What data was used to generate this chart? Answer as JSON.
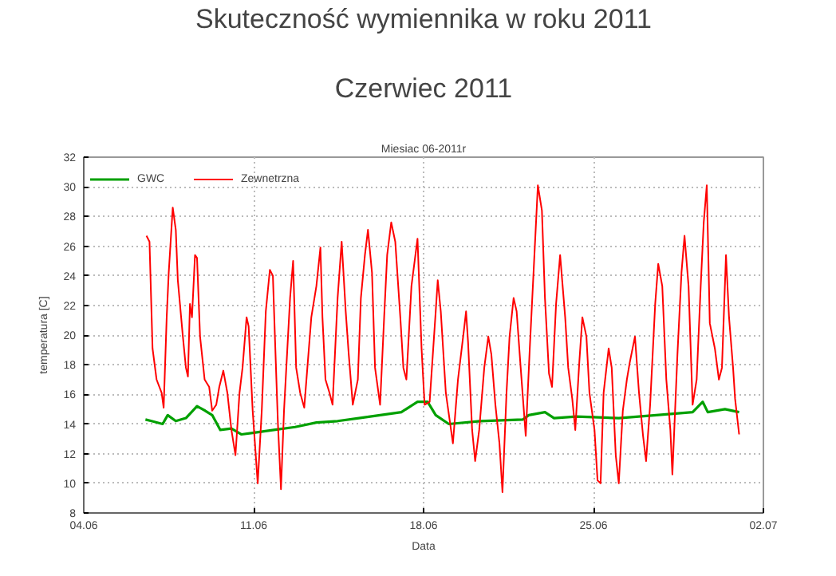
{
  "chart_data": {
    "type": "line",
    "title": "Skuteczność wymiennika w roku 2011",
    "subtitle": "Czerwiec 2011",
    "annotations": [
      "Miesiac 06-2011r"
    ],
    "xlabel": "Data",
    "ylabel": "temperatura [C]",
    "xlim": [
      "2011-06-04",
      "2011-07-02"
    ],
    "xticks": [
      {
        "value": "2011-06-04",
        "label": "04.06"
      },
      {
        "value": "2011-06-11",
        "label": "11.06"
      },
      {
        "value": "2011-06-18",
        "label": "18.06"
      },
      {
        "value": "2011-06-25",
        "label": "25.06"
      },
      {
        "value": "2011-07-02",
        "label": "02.07"
      }
    ],
    "ylim": [
      8,
      32
    ],
    "yticks": [
      8,
      10,
      12,
      14,
      16,
      18,
      20,
      22,
      24,
      26,
      28,
      30,
      32
    ],
    "grid": true,
    "legend": "top left",
    "line_style": "solid",
    "series": [
      {
        "name": "GWC",
        "color": "#00a000",
        "x": [
          "2011-06-06T13:00",
          "2011-06-06T19:00",
          "2011-06-07T06:00",
          "2011-06-07T11:00",
          "2011-06-07T19:00",
          "2011-06-08T05:00",
          "2011-06-08T16:00",
          "2011-06-09T00:00",
          "2011-06-09T07:00",
          "2011-06-09T15:00",
          "2011-06-10T02:00",
          "2011-06-10T12:00",
          "2011-06-10T23:00",
          "2011-06-11T20:00",
          "2011-06-12T17:00",
          "2011-06-13T14:00",
          "2011-06-14T11:00",
          "2011-06-15T08:00",
          "2011-06-16T05:00",
          "2011-06-17T02:00",
          "2011-06-17T18:00",
          "2011-06-18T04:00",
          "2011-06-18T12:00",
          "2011-06-19T01:00",
          "2011-06-20T08:00",
          "2011-06-22T02:00",
          "2011-06-22T08:00",
          "2011-06-23T00:00",
          "2011-06-23T09:00",
          "2011-06-24T07:00",
          "2011-06-26T01:00",
          "2011-06-27T14:00",
          "2011-06-29T02:00",
          "2011-06-29T12:00",
          "2011-06-29T17:00",
          "2011-06-30T10:00",
          "2011-07-01T00:00"
        ],
        "values": [
          14.3,
          14.2,
          14.0,
          14.6,
          14.2,
          14.4,
          15.2,
          14.9,
          14.6,
          13.6,
          13.7,
          13.3,
          13.4,
          13.6,
          13.8,
          14.1,
          14.2,
          14.4,
          14.6,
          14.8,
          15.5,
          15.5,
          14.6,
          14.0,
          14.2,
          14.3,
          14.6,
          14.8,
          14.4,
          14.5,
          14.4,
          14.6,
          14.8,
          15.5,
          14.8,
          15.0,
          14.8
        ]
      },
      {
        "name": "Zewnetrzna",
        "color": "#ff0000",
        "x": [
          "2011-06-06T14:00",
          "2011-06-06T17:00",
          "2011-06-06T20:00",
          "2011-06-07T00:00",
          "2011-06-07T05:00",
          "2011-06-07T07:00",
          "2011-06-07T10:00",
          "2011-06-07T12:00",
          "2011-06-07T16:00",
          "2011-06-07T19:00",
          "2011-06-07T21:00",
          "2011-06-08T02:00",
          "2011-06-08T05:00",
          "2011-06-08T07:00",
          "2011-06-08T09:00",
          "2011-06-08T11:00",
          "2011-06-08T14:00",
          "2011-06-08T16:00",
          "2011-06-08T19:00",
          "2011-06-08T23:30",
          "2011-06-09T04:00",
          "2011-06-09T07:00",
          "2011-06-09T11:00",
          "2011-06-09T14:00",
          "2011-06-09T18:00",
          "2011-06-09T22:00",
          "2011-06-10T02:00",
          "2011-06-10T06:00",
          "2011-06-10T10:00",
          "2011-06-10T13:00",
          "2011-06-10T17:00",
          "2011-06-10T19:00",
          "2011-06-10T23:00",
          "2011-06-11T04:00",
          "2011-06-11T08:00",
          "2011-06-11T12:00",
          "2011-06-11T16:00",
          "2011-06-11T19:00",
          "2011-06-11T21:00",
          "2011-06-12T00:00",
          "2011-06-12T03:00",
          "2011-06-12T06:00",
          "2011-06-12T12:00",
          "2011-06-12T15:00",
          "2011-06-12T18:00",
          "2011-06-12T22:00",
          "2011-06-13T02:00",
          "2011-06-13T09:00",
          "2011-06-13T14:00",
          "2011-06-13T18:00",
          "2011-06-13T20:00",
          "2011-06-13T23:00",
          "2011-06-14T03:00",
          "2011-06-14T06:00",
          "2011-06-14T11:00",
          "2011-06-14T15:00",
          "2011-06-14T19:00",
          "2011-06-14T22:00",
          "2011-06-15T02:00",
          "2011-06-15T07:00",
          "2011-06-15T10:00",
          "2011-06-15T14:00",
          "2011-06-15T17:00",
          "2011-06-15T21:00",
          "2011-06-16T00:00",
          "2011-06-16T05:00",
          "2011-06-16T09:00",
          "2011-06-16T12:00",
          "2011-06-16T16:00",
          "2011-06-16T20:00",
          "2011-06-17T01:00",
          "2011-06-17T04:00",
          "2011-06-17T07:00",
          "2011-06-17T12:00",
          "2011-06-17T18:00",
          "2011-06-17T22:00",
          "2011-06-18T01:00",
          "2011-06-18T06:00",
          "2011-06-18T12:00",
          "2011-06-18T14:00",
          "2011-06-18T17:00",
          "2011-06-18T22:00",
          "2011-06-19T05:00",
          "2011-06-19T10:00",
          "2011-06-19T16:00",
          "2011-06-19T18:00",
          "2011-06-19T20:00",
          "2011-06-20T00:00",
          "2011-06-20T03:00",
          "2011-06-20T07:00",
          "2011-06-20T12:00",
          "2011-06-20T16:00",
          "2011-06-20T19:00",
          "2011-06-20T23:00",
          "2011-06-21T03:00",
          "2011-06-21T06:00",
          "2011-06-21T10:00",
          "2011-06-21T13:00",
          "2011-06-21T17:00",
          "2011-06-21T20:00",
          "2011-06-22T00:00",
          "2011-06-22T05:00",
          "2011-06-22T09:00",
          "2011-06-22T13:00",
          "2011-06-22T17:00",
          "2011-06-22T21:00",
          "2011-06-23T00:00",
          "2011-06-23T04:00",
          "2011-06-23T07:00",
          "2011-06-23T11:00",
          "2011-06-23T15:00",
          "2011-06-23T20:00",
          "2011-06-23T23:00",
          "2011-06-24T03:00",
          "2011-06-24T06:00",
          "2011-06-24T10:00",
          "2011-06-24T13:00",
          "2011-06-24T17:00",
          "2011-06-24T20:00",
          "2011-06-25T01:00",
          "2011-06-25T04:00",
          "2011-06-25T07:00",
          "2011-06-25T10:00",
          "2011-06-25T15:00",
          "2011-06-25T18:00",
          "2011-06-25T22:00",
          "2011-06-26T01:00",
          "2011-06-26T05:00",
          "2011-06-26T09:00",
          "2011-06-26T12:00",
          "2011-06-26T17:00",
          "2011-06-26T21:00",
          "2011-06-27T01:00",
          "2011-06-27T04:00",
          "2011-06-27T08:00",
          "2011-06-27T13:00",
          "2011-06-27T16:00",
          "2011-06-27T20:00",
          "2011-06-28T00:00",
          "2011-06-28T04:00",
          "2011-06-28T06:00",
          "2011-06-28T11:00",
          "2011-06-28T15:00",
          "2011-06-28T18:00",
          "2011-06-28T22:00",
          "2011-06-29T02:00",
          "2011-06-29T06:00",
          "2011-06-29T10:00",
          "2011-06-29T13:00",
          "2011-06-29T16:00",
          "2011-06-29T19:00",
          "2011-06-30T00:00",
          "2011-06-30T04:00",
          "2011-06-30T07:00",
          "2011-06-30T11:00",
          "2011-06-30T14:00",
          "2011-06-30T18:00",
          "2011-06-30T20:00",
          "2011-07-01T00:00"
        ],
        "values": [
          26.7,
          26.3,
          19.1,
          17.0,
          16.1,
          15.1,
          21.2,
          24.2,
          28.6,
          27.1,
          23.7,
          19.9,
          17.8,
          17.2,
          22.1,
          21.2,
          25.4,
          25.2,
          19.9,
          17.0,
          16.5,
          14.9,
          15.3,
          16.5,
          17.6,
          16.1,
          13.6,
          11.9,
          16.1,
          17.8,
          21.2,
          20.6,
          14.9,
          10.0,
          14.9,
          21.6,
          24.4,
          24.0,
          19.9,
          14.0,
          9.6,
          14.9,
          22.5,
          25.0,
          17.8,
          16.1,
          15.1,
          21.2,
          23.3,
          25.9,
          21.2,
          17.0,
          16.1,
          15.3,
          22.5,
          26.3,
          21.6,
          18.7,
          15.3,
          17.0,
          22.5,
          25.4,
          27.1,
          24.2,
          17.8,
          15.3,
          21.2,
          25.4,
          27.6,
          26.3,
          21.2,
          17.8,
          17.0,
          23.3,
          26.5,
          19.1,
          15.3,
          15.5,
          21.6,
          23.7,
          21.6,
          16.1,
          12.7,
          17.0,
          20.4,
          21.6,
          19.5,
          13.6,
          11.5,
          13.6,
          17.8,
          19.9,
          18.7,
          15.3,
          12.7,
          9.4,
          16.1,
          19.9,
          22.5,
          21.6,
          17.8,
          13.2,
          19.1,
          24.6,
          30.1,
          28.4,
          22.5,
          17.4,
          16.5,
          22.1,
          25.4,
          21.2,
          17.8,
          15.7,
          13.6,
          18.2,
          21.2,
          19.9,
          16.1,
          13.6,
          10.2,
          10.0,
          16.1,
          19.1,
          17.8,
          11.9,
          10.0,
          14.9,
          17.0,
          18.2,
          19.9,
          16.1,
          13.2,
          11.5,
          15.3,
          22.1,
          24.8,
          23.3,
          17.0,
          13.6,
          10.6,
          18.7,
          24.2,
          26.7,
          23.3,
          15.3,
          17.0,
          23.3,
          27.6,
          30.1,
          20.8,
          19.1,
          17.0,
          17.8,
          25.4,
          21.2,
          17.8,
          15.7,
          13.3
        ]
      }
    ]
  }
}
